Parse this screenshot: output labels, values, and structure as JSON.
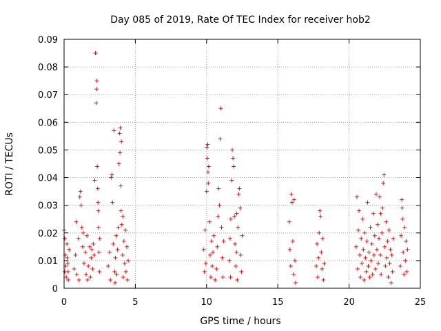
{
  "chart_data": {
    "type": "scatter",
    "title": "Day 085 of 2019, Rate Of TEC Index for receiver hob2",
    "xlabel": "GPS time / hours",
    "ylabel": "ROTI / TECUs",
    "xlim": [
      0,
      25
    ],
    "ylim": [
      0,
      0.09
    ],
    "x_ticks": [
      0,
      5,
      10,
      15,
      20,
      25
    ],
    "x_tick_labels": [
      "0",
      "5",
      "10",
      "15",
      "20",
      "25"
    ],
    "y_ticks": [
      0,
      0.01,
      0.02,
      0.03,
      0.04,
      0.05,
      0.06,
      0.07,
      0.08,
      0.09
    ],
    "y_tick_labels": [
      "0",
      "0.01",
      "0.02",
      "0.03",
      "0.04",
      "0.05",
      "0.06",
      "0.07",
      "0.08",
      "0.09"
    ],
    "grid": true,
    "marker": "+",
    "series": [
      {
        "name": "ROTI",
        "color": "#ff0000",
        "points": [
          [
            0.0,
            0.021
          ],
          [
            0.05,
            0.006
          ],
          [
            0.1,
            0.012
          ],
          [
            0.15,
            0.004
          ],
          [
            0.2,
            0.016
          ],
          [
            0.25,
            0.009
          ],
          [
            0.3,
            0.003
          ],
          [
            0.35,
            0.014
          ],
          [
            0.05,
            0.018
          ],
          [
            0.12,
            0.008
          ],
          [
            0.22,
            0.011
          ],
          [
            0.28,
            0.006
          ],
          [
            0.7,
            0.007
          ],
          [
            0.8,
            0.012
          ],
          [
            0.85,
            0.024
          ],
          [
            0.9,
            0.005
          ],
          [
            1.0,
            0.018
          ],
          [
            1.05,
            0.003
          ],
          [
            1.1,
            0.033
          ],
          [
            1.15,
            0.035
          ],
          [
            1.2,
            0.03
          ],
          [
            1.25,
            0.022
          ],
          [
            1.3,
            0.015
          ],
          [
            1.4,
            0.009
          ],
          [
            1.5,
            0.013
          ],
          [
            1.55,
            0.005
          ],
          [
            1.6,
            0.019
          ],
          [
            1.7,
            0.008
          ],
          [
            1.8,
            0.015
          ],
          [
            1.85,
            0.004
          ],
          [
            1.9,
            0.011
          ],
          [
            2.0,
            0.007
          ],
          [
            2.05,
            0.016
          ],
          [
            2.1,
            0.012
          ],
          [
            2.15,
            0.039
          ],
          [
            2.2,
            0.085
          ],
          [
            2.25,
            0.067
          ],
          [
            2.28,
            0.072
          ],
          [
            2.3,
            0.075
          ],
          [
            2.33,
            0.044
          ],
          [
            2.36,
            0.036
          ],
          [
            2.4,
            0.028
          ],
          [
            2.42,
            0.022
          ],
          [
            2.45,
            0.013
          ],
          [
            2.48,
            0.006
          ],
          [
            2.5,
            0.018
          ],
          [
            1.35,
            0.02
          ],
          [
            1.65,
            0.003
          ],
          [
            1.95,
            0.014
          ],
          [
            2.38,
            0.031
          ],
          [
            3.1,
            0.008
          ],
          [
            3.2,
            0.013
          ],
          [
            3.3,
            0.04
          ],
          [
            3.35,
            0.041
          ],
          [
            3.4,
            0.031
          ],
          [
            3.45,
            0.016
          ],
          [
            3.5,
            0.057
          ],
          [
            3.55,
            0.006
          ],
          [
            3.6,
            0.011
          ],
          [
            3.65,
            0.019
          ],
          [
            3.7,
            0.005
          ],
          [
            3.75,
            0.014
          ],
          [
            3.8,
            0.022
          ],
          [
            3.85,
            0.045
          ],
          [
            3.9,
            0.056
          ],
          [
            3.92,
            0.049
          ],
          [
            3.95,
            0.058
          ],
          [
            3.98,
            0.037
          ],
          [
            4.0,
            0.028
          ],
          [
            4.02,
            0.053
          ],
          [
            4.05,
            0.023
          ],
          [
            4.1,
            0.012
          ],
          [
            4.15,
            0.004
          ],
          [
            4.2,
            0.017
          ],
          [
            4.25,
            0.009
          ],
          [
            4.3,
            0.021
          ],
          [
            4.35,
            0.006
          ],
          [
            4.4,
            0.015
          ],
          [
            4.45,
            0.003
          ],
          [
            4.5,
            0.01
          ],
          [
            3.25,
            0.003
          ],
          [
            3.58,
            0.002
          ],
          [
            4.12,
            0.026
          ],
          [
            9.8,
            0.014
          ],
          [
            9.85,
            0.006
          ],
          [
            9.9,
            0.021
          ],
          [
            9.95,
            0.009
          ],
          [
            10.0,
            0.035
          ],
          [
            10.02,
            0.051
          ],
          [
            10.05,
            0.047
          ],
          [
            10.08,
            0.052
          ],
          [
            10.1,
            0.042
          ],
          [
            10.12,
            0.038
          ],
          [
            10.15,
            0.044
          ],
          [
            10.2,
            0.024
          ],
          [
            10.25,
            0.012
          ],
          [
            10.3,
            0.004
          ],
          [
            10.35,
            0.017
          ],
          [
            10.4,
            0.008
          ],
          [
            10.45,
            0.013
          ],
          [
            10.5,
            0.019
          ],
          [
            10.7,
            0.007
          ],
          [
            10.75,
            0.015
          ],
          [
            10.8,
            0.026
          ],
          [
            10.85,
            0.036
          ],
          [
            10.9,
            0.03
          ],
          [
            10.95,
            0.054
          ],
          [
            11.0,
            0.065
          ],
          [
            11.05,
            0.022
          ],
          [
            11.1,
            0.011
          ],
          [
            11.15,
            0.004
          ],
          [
            11.2,
            0.017
          ],
          [
            10.6,
            0.003
          ],
          [
            11.6,
            0.01
          ],
          [
            11.65,
            0.018
          ],
          [
            11.7,
            0.025
          ],
          [
            11.75,
            0.039
          ],
          [
            11.8,
            0.05
          ],
          [
            11.85,
            0.047
          ],
          [
            11.9,
            0.044
          ],
          [
            11.95,
            0.026
          ],
          [
            12.0,
            0.016
          ],
          [
            12.05,
            0.008
          ],
          [
            12.1,
            0.013
          ],
          [
            12.15,
            0.003
          ],
          [
            12.2,
            0.022
          ],
          [
            12.25,
            0.034
          ],
          [
            12.3,
            0.036
          ],
          [
            12.35,
            0.029
          ],
          [
            12.4,
            0.012
          ],
          [
            12.45,
            0.006
          ],
          [
            12.5,
            0.019
          ],
          [
            11.68,
            0.004
          ],
          [
            12.12,
            0.027
          ],
          [
            15.8,
            0.024
          ],
          [
            15.85,
            0.014
          ],
          [
            15.9,
            0.008
          ],
          [
            15.95,
            0.034
          ],
          [
            16.0,
            0.031
          ],
          [
            16.05,
            0.017
          ],
          [
            16.1,
            0.005
          ],
          [
            16.15,
            0.032
          ],
          [
            16.2,
            0.01
          ],
          [
            16.25,
            0.002
          ],
          [
            17.7,
            0.008
          ],
          [
            17.75,
            0.016
          ],
          [
            17.8,
            0.004
          ],
          [
            17.85,
            0.011
          ],
          [
            17.9,
            0.02
          ],
          [
            17.95,
            0.028
          ],
          [
            18.0,
            0.026
          ],
          [
            18.05,
            0.013
          ],
          [
            18.1,
            0.007
          ],
          [
            18.15,
            0.018
          ],
          [
            18.2,
            0.003
          ],
          [
            18.25,
            0.009
          ],
          [
            20.5,
            0.015
          ],
          [
            20.55,
            0.033
          ],
          [
            20.6,
            0.007
          ],
          [
            20.65,
            0.021
          ],
          [
            20.7,
            0.028
          ],
          [
            20.75,
            0.012
          ],
          [
            20.8,
            0.004
          ],
          [
            20.85,
            0.018
          ],
          [
            20.9,
            0.009
          ],
          [
            20.95,
            0.025
          ],
          [
            21.0,
            0.014
          ],
          [
            21.05,
            0.003
          ],
          [
            21.1,
            0.02
          ],
          [
            21.15,
            0.011
          ],
          [
            21.2,
            0.006
          ],
          [
            21.25,
            0.017
          ],
          [
            21.3,
            0.031
          ],
          [
            21.35,
            0.008
          ],
          [
            21.4,
            0.013
          ],
          [
            21.45,
            0.004
          ],
          [
            21.5,
            0.022
          ],
          [
            21.55,
            0.01
          ],
          [
            21.6,
            0.016
          ],
          [
            21.65,
            0.005
          ],
          [
            21.7,
            0.027
          ],
          [
            21.75,
            0.012
          ],
          [
            21.8,
            0.019
          ],
          [
            21.85,
            0.007
          ],
          [
            21.9,
            0.034
          ],
          [
            21.95,
            0.014
          ],
          [
            22.0,
            0.023
          ],
          [
            22.05,
            0.009
          ],
          [
            22.1,
            0.018
          ],
          [
            22.15,
            0.033
          ],
          [
            22.2,
            0.012
          ],
          [
            22.25,
            0.005
          ],
          [
            22.3,
            0.02
          ],
          [
            22.35,
            0.029
          ],
          [
            22.4,
            0.038
          ],
          [
            22.45,
            0.041
          ],
          [
            22.5,
            0.015
          ],
          [
            22.55,
            0.008
          ],
          [
            22.6,
            0.024
          ],
          [
            22.65,
            0.011
          ],
          [
            22.7,
            0.017
          ],
          [
            22.75,
            0.004
          ],
          [
            22.8,
            0.021
          ],
          [
            22.85,
            0.009
          ],
          [
            22.9,
            0.014
          ],
          [
            22.95,
            0.002
          ],
          [
            23.0,
            0.012
          ],
          [
            23.05,
            0.006
          ],
          [
            23.1,
            0.018
          ],
          [
            22.22,
            0.027
          ],
          [
            23.6,
            0.008
          ],
          [
            23.65,
            0.019
          ],
          [
            23.7,
            0.032
          ],
          [
            23.75,
            0.025
          ],
          [
            23.8,
            0.013
          ],
          [
            23.85,
            0.005
          ],
          [
            23.9,
            0.022
          ],
          [
            23.95,
            0.01
          ],
          [
            24.0,
            0.017
          ],
          [
            24.05,
            0.006
          ],
          [
            24.1,
            0.014
          ],
          [
            23.72,
            0.029
          ]
        ]
      }
    ]
  }
}
